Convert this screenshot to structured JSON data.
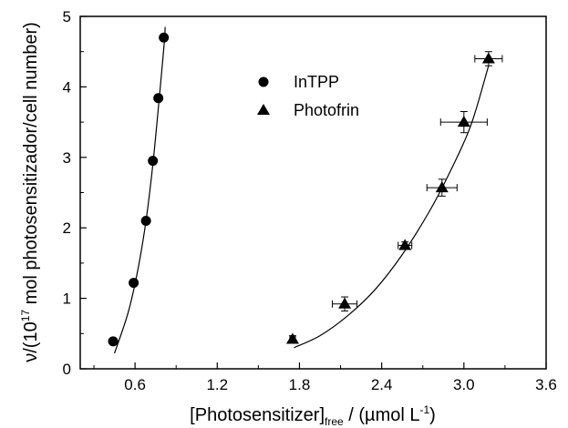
{
  "chart_data": {
    "type": "scatter",
    "xlabel": {
      "main": "[Photosensitizer]",
      "sub": "free",
      "tail": " / (µmol L",
      "sup": "-1",
      "end": ")"
    },
    "ylabel": {
      "pre": "ν/(10",
      "sup": "17",
      "post": " mol photosensitizador/cell number)"
    },
    "xlim": [
      0.2,
      3.6
    ],
    "ylim": [
      0,
      5
    ],
    "x_ticks": [
      "0.6",
      "1.2",
      "1.8",
      "2.4",
      "3.0",
      "3.6"
    ],
    "y_ticks": [
      "0",
      "1",
      "2",
      "3",
      "4",
      "5"
    ],
    "x_tick_values": [
      0.6,
      1.2,
      1.8,
      2.4,
      3.0,
      3.6
    ],
    "y_tick_values": [
      0,
      1,
      2,
      3,
      4,
      5
    ],
    "grid": false,
    "legend_position": "top-center",
    "series": [
      {
        "name": "InTPP",
        "marker": "circle",
        "points": [
          {
            "x": 0.44,
            "y": 0.39
          },
          {
            "x": 0.59,
            "y": 1.22
          },
          {
            "x": 0.68,
            "y": 2.1
          },
          {
            "x": 0.73,
            "y": 2.95
          },
          {
            "x": 0.77,
            "y": 3.84
          },
          {
            "x": 0.81,
            "y": 4.7
          }
        ],
        "fit_curve": [
          [
            0.45,
            0.22
          ],
          [
            0.55,
            0.8
          ],
          [
            0.62,
            1.4
          ],
          [
            0.68,
            2.1
          ],
          [
            0.73,
            2.9
          ],
          [
            0.77,
            3.7
          ],
          [
            0.81,
            4.55
          ],
          [
            0.82,
            4.85
          ]
        ]
      },
      {
        "name": "Photofrin",
        "marker": "triangle",
        "points": [
          {
            "x": 1.75,
            "y": 0.42,
            "xerr": 0.02,
            "yerr": 0.05
          },
          {
            "x": 2.13,
            "y": 0.92,
            "xerr": 0.09,
            "yerr": 0.1
          },
          {
            "x": 2.57,
            "y": 1.75,
            "xerr": 0.05,
            "yerr": 0.05
          },
          {
            "x": 2.84,
            "y": 2.57,
            "xerr": 0.11,
            "yerr": 0.12
          },
          {
            "x": 3.0,
            "y": 3.5,
            "xerr": 0.17,
            "yerr": 0.15
          },
          {
            "x": 3.18,
            "y": 4.4,
            "xerr": 0.1,
            "yerr": 0.1
          }
        ],
        "fit_curve": [
          [
            1.76,
            0.3
          ],
          [
            1.95,
            0.47
          ],
          [
            2.15,
            0.75
          ],
          [
            2.35,
            1.12
          ],
          [
            2.55,
            1.62
          ],
          [
            2.75,
            2.24
          ],
          [
            2.9,
            2.8
          ],
          [
            3.05,
            3.45
          ],
          [
            3.18,
            4.3
          ]
        ]
      }
    ]
  },
  "colors": {
    "ink": "#000000",
    "background": "#ffffff"
  }
}
